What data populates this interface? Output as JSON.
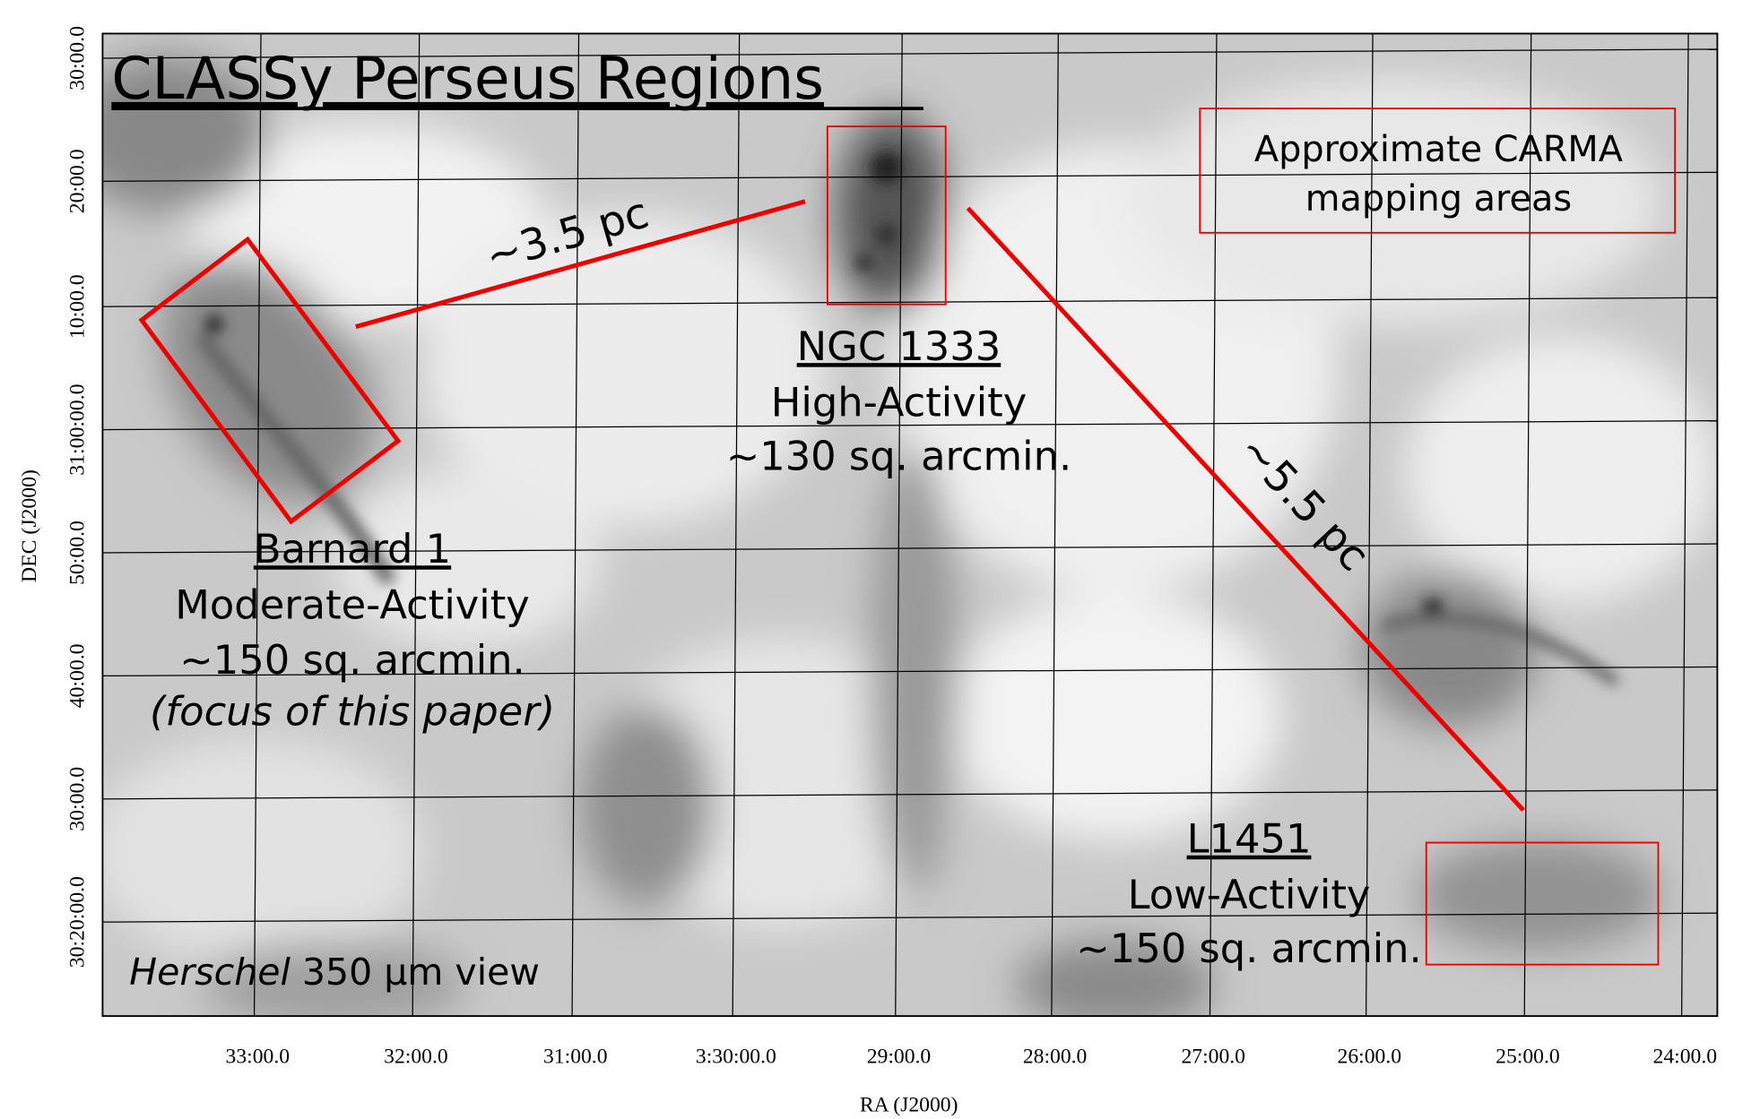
{
  "title": "CLASSy Perseus Regions",
  "axes": {
    "x_label": "RA (J2000)",
    "y_label": "DEC (J2000)",
    "x_ticks": [
      "33:00.0",
      "32:00.0",
      "31:00.0",
      "3:30:00.0",
      "29:00.0",
      "28:00.0",
      "27:00.0",
      "26:00.0",
      "25:00.0",
      "24:00.0"
    ],
    "y_ticks": [
      "30:00.0",
      "20:00.0",
      "10:00.0",
      "31:00:00.0",
      "50:00.0",
      "40:00.0",
      "30:00.0",
      "30:20:00.0"
    ]
  },
  "legend": {
    "line1": "Approximate CARMA",
    "line2": "mapping areas"
  },
  "regions": [
    {
      "name": "NGC 1333",
      "activity": "High-Activity",
      "area": "~130 sq. arcmin."
    },
    {
      "name": "Barnard 1",
      "activity": "Moderate-Activity",
      "area": "~150 sq. arcmin.",
      "note": "(focus of this paper)"
    },
    {
      "name": "L1451",
      "activity": "Low-Activity",
      "area": "~150 sq. arcmin."
    }
  ],
  "distances": [
    "~3.5 pc",
    "~5.5 pc"
  ],
  "view": {
    "instrument": "Herschel",
    "band": " 350 μm view"
  }
}
